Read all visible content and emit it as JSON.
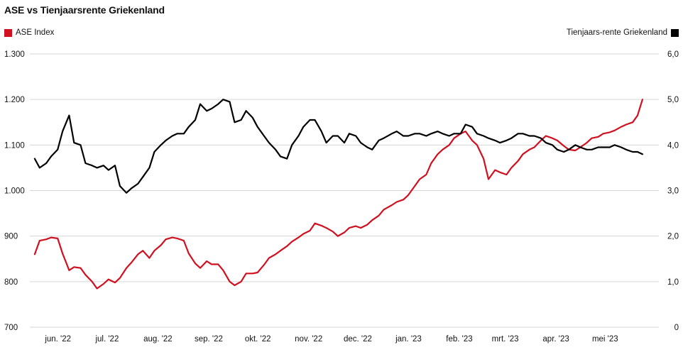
{
  "title": "ASE vs Tienjaarsrente Griekenland",
  "legend": {
    "left": {
      "label": "ASE Index",
      "color": "#d0101f"
    },
    "right": {
      "label": "Tienjaars-rente Griekenland",
      "color": "#000000"
    }
  },
  "chart_data": {
    "type": "line",
    "title": "ASE vs Tienjaarsrente Griekenland",
    "grid": true,
    "legend_placement": "top",
    "x_tick_labels": [
      "jun. '22",
      "jul. '22",
      "aug. '22",
      "sep. '22",
      "okt. '22",
      "nov. '22",
      "dec. '22",
      "jan. '23",
      "feb. '23",
      "mrt. '23",
      "apr. '23",
      "mei '23"
    ],
    "y_left": {
      "range": [
        700,
        1300
      ],
      "ticks": [
        "700",
        "800",
        "900",
        "1.000",
        "1.100",
        "1.200",
        "1.300"
      ],
      "tick_values": [
        700,
        800,
        900,
        1000,
        1100,
        1200,
        1300
      ]
    },
    "y_right": {
      "range": [
        0,
        6
      ],
      "ticks": [
        "0",
        "1,0",
        "2,0",
        "3,0",
        "4,0",
        "5,0",
        "6,0"
      ],
      "tick_values": [
        0,
        1,
        2,
        3,
        4,
        5,
        6
      ]
    },
    "series": [
      {
        "name": "ASE Index",
        "axis": "left",
        "color": "#d0101f",
        "x": [
          "2022-05-23",
          "2022-05-26",
          "2022-05-30",
          "2022-06-02",
          "2022-06-06",
          "2022-06-09",
          "2022-06-13",
          "2022-06-16",
          "2022-06-20",
          "2022-06-23",
          "2022-06-27",
          "2022-06-30",
          "2022-07-04",
          "2022-07-07",
          "2022-07-11",
          "2022-07-14",
          "2022-07-18",
          "2022-07-21",
          "2022-07-25",
          "2022-07-28",
          "2022-08-01",
          "2022-08-04",
          "2022-08-08",
          "2022-08-11",
          "2022-08-15",
          "2022-08-18",
          "2022-08-22",
          "2022-08-25",
          "2022-08-29",
          "2022-09-01",
          "2022-09-05",
          "2022-09-08",
          "2022-09-12",
          "2022-09-15",
          "2022-09-19",
          "2022-09-22",
          "2022-09-26",
          "2022-09-29",
          "2022-10-03",
          "2022-10-06",
          "2022-10-10",
          "2022-10-13",
          "2022-10-17",
          "2022-10-20",
          "2022-10-24",
          "2022-10-27",
          "2022-10-31",
          "2022-11-03",
          "2022-11-07",
          "2022-11-10",
          "2022-11-14",
          "2022-11-17",
          "2022-11-21",
          "2022-11-24",
          "2022-11-28",
          "2022-12-01",
          "2022-12-05",
          "2022-12-08",
          "2022-12-12",
          "2022-12-15",
          "2022-12-19",
          "2022-12-22",
          "2022-12-27",
          "2022-12-30",
          "2023-01-03",
          "2023-01-06",
          "2023-01-10",
          "2023-01-13",
          "2023-01-17",
          "2023-01-20",
          "2023-01-24",
          "2023-01-27",
          "2023-01-31",
          "2023-02-03",
          "2023-02-07",
          "2023-02-10",
          "2023-02-14",
          "2023-02-17",
          "2023-02-21",
          "2023-02-24",
          "2023-02-28",
          "2023-03-03",
          "2023-03-07",
          "2023-03-10",
          "2023-03-14",
          "2023-03-17",
          "2023-03-21",
          "2023-03-24",
          "2023-03-28",
          "2023-03-31",
          "2023-04-04",
          "2023-04-07",
          "2023-04-11",
          "2023-04-14",
          "2023-04-18",
          "2023-04-21",
          "2023-04-25",
          "2023-04-28",
          "2023-05-02",
          "2023-05-05",
          "2023-05-09",
          "2023-05-12",
          "2023-05-16",
          "2023-05-19",
          "2023-05-23",
          "2023-05-26",
          "2023-05-29"
        ],
        "values": [
          860,
          890,
          893,
          897,
          895,
          862,
          825,
          832,
          830,
          815,
          800,
          785,
          795,
          805,
          798,
          808,
          830,
          842,
          860,
          868,
          852,
          868,
          880,
          893,
          897,
          895,
          890,
          862,
          840,
          830,
          845,
          838,
          838,
          825,
          800,
          792,
          800,
          818,
          818,
          820,
          837,
          852,
          860,
          868,
          878,
          888,
          897,
          905,
          912,
          928,
          923,
          918,
          910,
          900,
          908,
          918,
          922,
          918,
          925,
          935,
          945,
          958,
          968,
          975,
          980,
          990,
          1010,
          1025,
          1035,
          1060,
          1080,
          1090,
          1100,
          1115,
          1125,
          1130,
          1110,
          1100,
          1070,
          1025,
          1045,
          1040,
          1035,
          1050,
          1065,
          1080,
          1090,
          1095,
          1110,
          1120,
          1115,
          1110,
          1098,
          1090,
          1088,
          1095,
          1105,
          1115,
          1118,
          1125,
          1128,
          1132,
          1140,
          1145,
          1150,
          1165,
          1200
        ]
      },
      {
        "name": "Tienjaars-rente Griekenland",
        "axis": "right",
        "color": "#000000",
        "x": [
          "2022-05-23",
          "2022-05-26",
          "2022-05-30",
          "2022-06-02",
          "2022-06-06",
          "2022-06-09",
          "2022-06-13",
          "2022-06-16",
          "2022-06-20",
          "2022-06-23",
          "2022-06-27",
          "2022-06-30",
          "2022-07-04",
          "2022-07-07",
          "2022-07-11",
          "2022-07-14",
          "2022-07-18",
          "2022-07-21",
          "2022-07-25",
          "2022-07-28",
          "2022-08-01",
          "2022-08-04",
          "2022-08-08",
          "2022-08-11",
          "2022-08-15",
          "2022-08-18",
          "2022-08-22",
          "2022-08-25",
          "2022-08-29",
          "2022-09-01",
          "2022-09-05",
          "2022-09-08",
          "2022-09-12",
          "2022-09-15",
          "2022-09-19",
          "2022-09-22",
          "2022-09-26",
          "2022-09-29",
          "2022-10-03",
          "2022-10-06",
          "2022-10-10",
          "2022-10-13",
          "2022-10-17",
          "2022-10-20",
          "2022-10-24",
          "2022-10-27",
          "2022-10-31",
          "2022-11-03",
          "2022-11-07",
          "2022-11-10",
          "2022-11-14",
          "2022-11-17",
          "2022-11-21",
          "2022-11-24",
          "2022-11-28",
          "2022-12-01",
          "2022-12-05",
          "2022-12-08",
          "2022-12-12",
          "2022-12-15",
          "2022-12-19",
          "2022-12-22",
          "2022-12-27",
          "2022-12-30",
          "2023-01-03",
          "2023-01-06",
          "2023-01-10",
          "2023-01-13",
          "2023-01-17",
          "2023-01-20",
          "2023-01-24",
          "2023-01-27",
          "2023-01-31",
          "2023-02-03",
          "2023-02-07",
          "2023-02-10",
          "2023-02-14",
          "2023-02-17",
          "2023-02-21",
          "2023-02-24",
          "2023-02-28",
          "2023-03-03",
          "2023-03-07",
          "2023-03-10",
          "2023-03-14",
          "2023-03-17",
          "2023-03-21",
          "2023-03-24",
          "2023-03-28",
          "2023-03-31",
          "2023-04-04",
          "2023-04-07",
          "2023-04-11",
          "2023-04-14",
          "2023-04-18",
          "2023-04-21",
          "2023-04-25",
          "2023-04-28",
          "2023-05-02",
          "2023-05-05",
          "2023-05-09",
          "2023-05-12",
          "2023-05-16",
          "2023-05-19",
          "2023-05-23",
          "2023-05-26",
          "2023-05-29"
        ],
        "values": [
          3.7,
          3.5,
          3.6,
          3.75,
          3.9,
          4.3,
          4.65,
          4.05,
          4.0,
          3.6,
          3.55,
          3.5,
          3.55,
          3.45,
          3.55,
          3.1,
          2.95,
          3.05,
          3.15,
          3.3,
          3.5,
          3.85,
          4.0,
          4.1,
          4.2,
          4.25,
          4.25,
          4.4,
          4.55,
          4.9,
          4.75,
          4.8,
          4.9,
          5.0,
          4.95,
          4.5,
          4.55,
          4.75,
          4.6,
          4.4,
          4.2,
          4.05,
          3.9,
          3.75,
          3.7,
          4.0,
          4.2,
          4.4,
          4.55,
          4.55,
          4.3,
          4.05,
          4.2,
          4.2,
          4.05,
          4.25,
          4.2,
          4.05,
          3.95,
          3.9,
          4.1,
          4.15,
          4.25,
          4.3,
          4.2,
          4.2,
          4.25,
          4.25,
          4.2,
          4.25,
          4.3,
          4.25,
          4.2,
          4.25,
          4.25,
          4.45,
          4.4,
          4.25,
          4.2,
          4.15,
          4.1,
          4.05,
          4.1,
          4.15,
          4.25,
          4.25,
          4.2,
          4.2,
          4.15,
          4.05,
          4.0,
          3.9,
          3.85,
          3.9,
          4.0,
          3.95,
          3.9,
          3.9,
          3.95,
          3.95,
          3.95,
          4.0,
          3.95,
          3.9,
          3.85,
          3.85,
          3.8
        ]
      }
    ]
  }
}
